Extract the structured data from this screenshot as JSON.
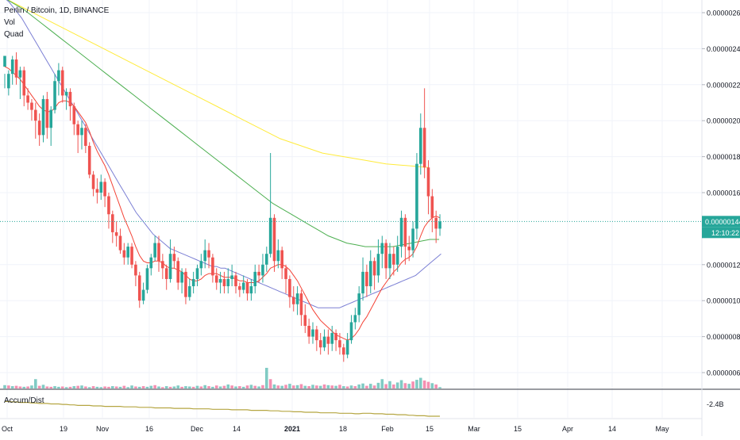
{
  "header": {
    "symbol_line": "Perlin / Bitcoin, 1D, BINANCE",
    "vol_label": "Vol",
    "quad_label": "Quad",
    "indicator_label": "Accum/Dist"
  },
  "price_axis": {
    "ticks": [
      "0.00000260",
      "0.00000240",
      "0.00000220",
      "0.00000200",
      "0.00000180",
      "0.00000160",
      "0.00000120",
      "0.00000100",
      "0.00000080",
      "0.00000060"
    ],
    "tick_values": [
      260,
      240,
      220,
      200,
      180,
      160,
      120,
      100,
      80,
      60
    ],
    "last_price": "0.00000144",
    "countdown": "12:10:22",
    "indicator_value": "-2.4B"
  },
  "time_axis": {
    "labels": [
      "Oct",
      "19",
      "Nov",
      "16",
      "Dec",
      "14",
      "2021",
      "18",
      "Feb",
      "15",
      "Mar",
      "15",
      "Apr",
      "14",
      "May"
    ]
  },
  "colors": {
    "up": "#26a69a",
    "down": "#ef5350",
    "vol_up": "#80cbc4",
    "vol_down": "#f48fb1",
    "ma_red": "#f44336",
    "ma_blue": "#7b7fd4",
    "ma_green": "#4caf50",
    "ma_yellow": "#ffeb3b",
    "accum": "#b5a642"
  },
  "chart_data": {
    "type": "candlestick",
    "title": "Perlin / Bitcoin, 1D, BINANCE",
    "y_unit": "BTC x 1e-8 (satoshi)",
    "ylim": [
      52,
      268
    ],
    "candles": [
      [
        230,
        236,
        226,
        218
      ],
      [
        218,
        226,
        228,
        214
      ],
      [
        226,
        234,
        236,
        220
      ],
      [
        234,
        224,
        238,
        220
      ],
      [
        224,
        228,
        230,
        212
      ],
      [
        228,
        214,
        230,
        208
      ],
      [
        214,
        210,
        218,
        206
      ],
      [
        210,
        206,
        212,
        200
      ],
      [
        206,
        200,
        210,
        190
      ],
      [
        200,
        192,
        204,
        186
      ],
      [
        192,
        212,
        214,
        188
      ],
      [
        212,
        196,
        216,
        190
      ],
      [
        196,
        206,
        208,
        186
      ],
      [
        206,
        222,
        226,
        204
      ],
      [
        222,
        228,
        232,
        214
      ],
      [
        228,
        214,
        230,
        210
      ],
      [
        214,
        216,
        218,
        206
      ],
      [
        216,
        208,
        218,
        200
      ],
      [
        208,
        198,
        210,
        192
      ],
      [
        198,
        192,
        200,
        182
      ],
      [
        192,
        196,
        200,
        184
      ],
      [
        196,
        186,
        198,
        182
      ],
      [
        186,
        170,
        188,
        168
      ],
      [
        170,
        162,
        172,
        158
      ],
      [
        162,
        160,
        168,
        154
      ],
      [
        160,
        166,
        170,
        156
      ],
      [
        166,
        158,
        168,
        152
      ],
      [
        158,
        148,
        160,
        140
      ],
      [
        148,
        138,
        150,
        132
      ],
      [
        138,
        136,
        144,
        130
      ],
      [
        136,
        128,
        140,
        126
      ],
      [
        128,
        124,
        132,
        120
      ],
      [
        124,
        130,
        132,
        120
      ],
      [
        130,
        120,
        132,
        118
      ],
      [
        120,
        114,
        122,
        108
      ],
      [
        114,
        100,
        116,
        96
      ],
      [
        100,
        106,
        110,
        98
      ],
      [
        106,
        118,
        120,
        104
      ],
      [
        118,
        124,
        126,
        114
      ],
      [
        124,
        132,
        136,
        122
      ],
      [
        132,
        122,
        136,
        116
      ],
      [
        122,
        118,
        126,
        112
      ],
      [
        118,
        112,
        120,
        106
      ],
      [
        112,
        126,
        134,
        110
      ],
      [
        126,
        122,
        130,
        118
      ],
      [
        122,
        110,
        124,
        106
      ],
      [
        110,
        116,
        118,
        104
      ],
      [
        116,
        102,
        118,
        98
      ],
      [
        102,
        108,
        112,
        100
      ],
      [
        108,
        112,
        116,
        104
      ],
      [
        112,
        118,
        120,
        108
      ],
      [
        118,
        122,
        126,
        114
      ],
      [
        122,
        128,
        134,
        118
      ],
      [
        128,
        124,
        132,
        118
      ],
      [
        124,
        114,
        126,
        110
      ],
      [
        114,
        110,
        118,
        106
      ],
      [
        110,
        112,
        116,
        104
      ],
      [
        112,
        108,
        116,
        104
      ],
      [
        108,
        112,
        118,
        104
      ],
      [
        112,
        114,
        120,
        108
      ],
      [
        114,
        108,
        116,
        104
      ],
      [
        108,
        106,
        110,
        102
      ],
      [
        106,
        110,
        114,
        104
      ],
      [
        110,
        104,
        112,
        100
      ],
      [
        104,
        108,
        112,
        100
      ],
      [
        108,
        116,
        120,
        104
      ],
      [
        116,
        114,
        120,
        110
      ],
      [
        114,
        120,
        126,
        110
      ],
      [
        120,
        126,
        130,
        116
      ],
      [
        126,
        146,
        182,
        124
      ],
      [
        146,
        122,
        148,
        116
      ],
      [
        122,
        128,
        134,
        118
      ],
      [
        128,
        118,
        130,
        112
      ],
      [
        118,
        112,
        120,
        104
      ],
      [
        112,
        102,
        114,
        96
      ],
      [
        102,
        98,
        108,
        94
      ],
      [
        98,
        104,
        108,
        92
      ],
      [
        104,
        92,
        106,
        86
      ],
      [
        92,
        86,
        98,
        82
      ],
      [
        86,
        80,
        90,
        76
      ],
      [
        80,
        84,
        88,
        76
      ],
      [
        84,
        78,
        86,
        72
      ],
      [
        78,
        74,
        82,
        70
      ],
      [
        74,
        80,
        84,
        72
      ],
      [
        80,
        76,
        84,
        70
      ],
      [
        76,
        82,
        86,
        72
      ],
      [
        82,
        78,
        84,
        72
      ],
      [
        78,
        74,
        82,
        70
      ],
      [
        74,
        70,
        76,
        66
      ],
      [
        70,
        78,
        82,
        68
      ],
      [
        78,
        88,
        92,
        76
      ],
      [
        88,
        92,
        96,
        84
      ],
      [
        92,
        104,
        108,
        88
      ],
      [
        104,
        116,
        124,
        100
      ],
      [
        116,
        108,
        120,
        102
      ],
      [
        108,
        122,
        128,
        104
      ],
      [
        122,
        114,
        124,
        106
      ],
      [
        114,
        126,
        134,
        110
      ],
      [
        126,
        132,
        136,
        118
      ],
      [
        132,
        118,
        134,
        112
      ],
      [
        118,
        126,
        132,
        112
      ],
      [
        126,
        120,
        130,
        114
      ],
      [
        120,
        130,
        136,
        116
      ],
      [
        130,
        146,
        150,
        124
      ],
      [
        146,
        130,
        148,
        120
      ],
      [
        130,
        128,
        136,
        122
      ],
      [
        128,
        140,
        144,
        124
      ],
      [
        140,
        176,
        182,
        134
      ],
      [
        176,
        196,
        204,
        170
      ],
      [
        196,
        174,
        218,
        168
      ],
      [
        174,
        158,
        178,
        148
      ],
      [
        158,
        146,
        162,
        138
      ],
      [
        146,
        140,
        150,
        132
      ],
      [
        140,
        144,
        148,
        136
      ]
    ],
    "ma_red": [
      230,
      229,
      227,
      225,
      223,
      220,
      217,
      214,
      211,
      208,
      206,
      205,
      205,
      207,
      210,
      211,
      211,
      210,
      208,
      205,
      202,
      199,
      194,
      188,
      183,
      179,
      175,
      170,
      164,
      158,
      152,
      146,
      141,
      136,
      130,
      125,
      122,
      121,
      121,
      122,
      122,
      121,
      119,
      118,
      118,
      117,
      116,
      114,
      112,
      111,
      111,
      112,
      114,
      115,
      115,
      115,
      114,
      113,
      113,
      113,
      112,
      111,
      111,
      110,
      110,
      110,
      111,
      113,
      115,
      118,
      119,
      120,
      120,
      119,
      117,
      114,
      111,
      107,
      103,
      99,
      95,
      92,
      89,
      87,
      85,
      83,
      81,
      80,
      79,
      78,
      79,
      81,
      84,
      88,
      91,
      95,
      99,
      103,
      107,
      110,
      113,
      116,
      118,
      121,
      123,
      124,
      126,
      130,
      136,
      141,
      144,
      146,
      147,
      146
    ],
    "ma_blue": [
      268,
      266,
      263,
      260,
      257,
      253,
      249,
      245,
      241,
      237,
      233,
      229,
      225,
      221,
      217,
      213,
      209,
      205,
      201,
      197,
      193,
      189,
      185,
      181,
      177,
      173,
      169,
      165,
      161,
      157,
      153,
      149,
      146,
      143,
      140,
      137,
      135,
      133,
      131,
      129,
      128,
      127,
      126,
      125,
      124,
      123,
      122,
      121,
      120,
      119,
      119,
      118,
      118,
      117,
      116,
      115,
      114,
      113,
      112,
      111,
      110,
      109,
      108,
      107,
      106,
      105,
      104,
      103,
      102,
      101,
      100,
      99,
      98,
      97,
      96,
      96,
      96,
      96,
      96,
      96,
      97,
      98,
      99,
      100,
      101,
      102,
      103,
      104,
      105,
      106,
      107,
      108,
      109,
      110,
      111,
      112,
      113,
      114,
      116,
      118,
      120,
      122,
      124,
      126
    ],
    "ma_green": [
      268,
      265,
      262,
      258,
      254,
      250,
      246,
      242,
      238,
      234,
      230,
      226,
      222,
      218,
      214,
      210,
      206,
      202,
      198,
      194,
      190,
      186,
      182,
      178,
      174,
      170,
      166,
      162,
      158,
      154,
      151,
      148,
      145,
      142,
      139,
      136,
      134,
      132,
      131,
      130,
      130,
      130,
      130,
      131,
      132,
      133,
      134,
      134
    ],
    "ma_yellow": [
      268,
      262,
      256,
      250,
      244,
      238,
      232,
      226,
      220,
      214,
      208,
      202,
      196,
      190,
      186,
      182,
      180,
      178,
      176,
      175,
      174
    ],
    "volume": [
      [
        10,
        1
      ],
      [
        9,
        0
      ],
      [
        7,
        1
      ],
      [
        8,
        0
      ],
      [
        6,
        0
      ],
      [
        5,
        1
      ],
      [
        6,
        0
      ],
      [
        9,
        1
      ],
      [
        28,
        1
      ],
      [
        8,
        0
      ],
      [
        11,
        1
      ],
      [
        6,
        0
      ],
      [
        5,
        0
      ],
      [
        7,
        1
      ],
      [
        5,
        1
      ],
      [
        6,
        0
      ],
      [
        4,
        1
      ],
      [
        5,
        0
      ],
      [
        7,
        1
      ],
      [
        8,
        0
      ],
      [
        9,
        1
      ],
      [
        6,
        0
      ],
      [
        4,
        1
      ],
      [
        7,
        0
      ],
      [
        5,
        1
      ],
      [
        4,
        1
      ],
      [
        6,
        0
      ],
      [
        5,
        0
      ],
      [
        7,
        1
      ],
      [
        6,
        0
      ],
      [
        5,
        1
      ],
      [
        8,
        0
      ],
      [
        4,
        1
      ],
      [
        9,
        1
      ],
      [
        6,
        0
      ],
      [
        5,
        1
      ],
      [
        7,
        0
      ],
      [
        5,
        1
      ],
      [
        8,
        1
      ],
      [
        10,
        0
      ],
      [
        6,
        1
      ],
      [
        4,
        0
      ],
      [
        7,
        1
      ],
      [
        5,
        0
      ],
      [
        6,
        1
      ],
      [
        9,
        1
      ],
      [
        5,
        0
      ],
      [
        7,
        1
      ],
      [
        6,
        1
      ],
      [
        5,
        0
      ],
      [
        8,
        1
      ],
      [
        6,
        0
      ],
      [
        10,
        1
      ],
      [
        7,
        0
      ],
      [
        5,
        1
      ],
      [
        9,
        0
      ],
      [
        6,
        1
      ],
      [
        8,
        0
      ],
      [
        12,
        1
      ],
      [
        9,
        0
      ],
      [
        6,
        1
      ],
      [
        7,
        0
      ],
      [
        5,
        1
      ],
      [
        9,
        0
      ],
      [
        11,
        1
      ],
      [
        8,
        0
      ],
      [
        6,
        1
      ],
      [
        10,
        0
      ],
      [
        62,
        1
      ],
      [
        28,
        0
      ],
      [
        12,
        1
      ],
      [
        9,
        0
      ],
      [
        8,
        1
      ],
      [
        11,
        0
      ],
      [
        14,
        1
      ],
      [
        9,
        0
      ],
      [
        10,
        1
      ],
      [
        13,
        0
      ],
      [
        8,
        1
      ],
      [
        7,
        0
      ],
      [
        11,
        1
      ],
      [
        9,
        0
      ],
      [
        8,
        1
      ],
      [
        12,
        0
      ],
      [
        10,
        1
      ],
      [
        9,
        0
      ],
      [
        8,
        1
      ],
      [
        11,
        0
      ],
      [
        7,
        1
      ],
      [
        6,
        0
      ],
      [
        9,
        1
      ],
      [
        7,
        0
      ],
      [
        12,
        1
      ],
      [
        15,
        1
      ],
      [
        8,
        0
      ],
      [
        14,
        1
      ],
      [
        9,
        0
      ],
      [
        17,
        1
      ],
      [
        28,
        1
      ],
      [
        13,
        0
      ],
      [
        22,
        1
      ],
      [
        12,
        0
      ],
      [
        18,
        1
      ],
      [
        25,
        1
      ],
      [
        16,
        0
      ],
      [
        14,
        1
      ],
      [
        21,
        0
      ],
      [
        26,
        1
      ],
      [
        32,
        1
      ],
      [
        24,
        0
      ],
      [
        20,
        0
      ],
      [
        16,
        1
      ],
      [
        12,
        0
      ],
      [
        4,
        1
      ]
    ],
    "accum": [
      20,
      20,
      21,
      21,
      22,
      22,
      22,
      23,
      23,
      24,
      24,
      24,
      25,
      25,
      25,
      26,
      26,
      27,
      27,
      28,
      28,
      28,
      28,
      29,
      29,
      29,
      30,
      30,
      30,
      30,
      30,
      31,
      31,
      31,
      31,
      32,
      32,
      32,
      32,
      33,
      33,
      33,
      33,
      33,
      34,
      34,
      34,
      34,
      34,
      35,
      35,
      35,
      35,
      35,
      36,
      36,
      36,
      36,
      36,
      37,
      37,
      37,
      37,
      37,
      38,
      38,
      38,
      38,
      38,
      39,
      39,
      39,
      40,
      40,
      40,
      41,
      41,
      41,
      42,
      42,
      42,
      42,
      43,
      43,
      43,
      43,
      43,
      44,
      44,
      44,
      44,
      45,
      45,
      44,
      44,
      44,
      45,
      45,
      45,
      46,
      46,
      46,
      47,
      47,
      47,
      48,
      48,
      49,
      49,
      49,
      50,
      50,
      50,
      50
    ]
  }
}
